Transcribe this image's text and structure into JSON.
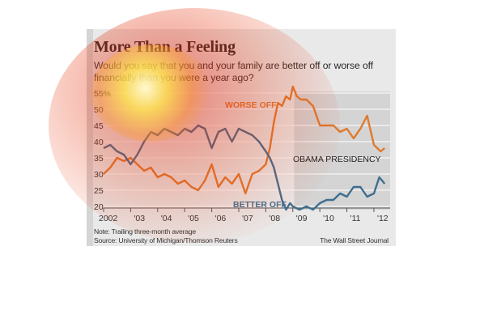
{
  "title": "More Than a Feeling",
  "subtitle": "Would you say that you and your family are better off or worse off financially than you were a year ago?",
  "note": "Note: Trailing three-month average",
  "source": "Source: University of Michigan/Thomson Reuters",
  "credit": "The Wall Street Journal",
  "colors": {
    "worse": "#e07a2c",
    "better": "#3f6e8f",
    "presidency_band": "#d4d4d4",
    "background": "#e9e9e9"
  },
  "chart_data": {
    "type": "line",
    "ylim": [
      20,
      55
    ],
    "xlim": [
      2002,
      2012.6
    ],
    "y_ticks": [
      "55%",
      "50",
      "45",
      "40",
      "35",
      "30",
      "25",
      "20"
    ],
    "y_tick_values": [
      55,
      50,
      45,
      40,
      35,
      30,
      25,
      20
    ],
    "x_ticks": [
      "2002",
      "'03",
      "'04",
      "'05",
      "'06",
      "'07",
      "'08",
      "'09",
      "'10",
      "'11",
      "'12"
    ],
    "x_tick_values": [
      2002,
      2003,
      2004,
      2005,
      2006,
      2007,
      2008,
      2009,
      2010,
      2011,
      2012
    ],
    "band": {
      "label": "OBAMA PRESIDENCY",
      "start": 2009.05,
      "end": 2012.6
    },
    "series": [
      {
        "name": "WORSE OFF",
        "color": "#e07a2c",
        "x": [
          2002.0,
          2002.25,
          2002.5,
          2002.75,
          2003.0,
          2003.25,
          2003.5,
          2003.75,
          2004.0,
          2004.25,
          2004.5,
          2004.75,
          2005.0,
          2005.25,
          2005.5,
          2005.75,
          2006.0,
          2006.25,
          2006.5,
          2006.75,
          2007.0,
          2007.25,
          2007.5,
          2007.75,
          2008.0,
          2008.15,
          2008.3,
          2008.45,
          2008.6,
          2008.75,
          2008.9,
          2009.0,
          2009.15,
          2009.3,
          2009.5,
          2009.75,
          2010.0,
          2010.25,
          2010.5,
          2010.75,
          2011.0,
          2011.25,
          2011.5,
          2011.75,
          2012.0,
          2012.25,
          2012.4
        ],
        "values": [
          30,
          32,
          35,
          34,
          35,
          33,
          31,
          32,
          29,
          30,
          29,
          27,
          28,
          26,
          25,
          28,
          33,
          26,
          29,
          27,
          30,
          24,
          30,
          31,
          33,
          38,
          46,
          52,
          51,
          54,
          53,
          57,
          54,
          53,
          53,
          51,
          45,
          45,
          45,
          43,
          44,
          41,
          44,
          48,
          39,
          37,
          38
        ]
      },
      {
        "name": "BETTER OFF",
        "color": "#3f6e8f",
        "x": [
          2002.0,
          2002.25,
          2002.5,
          2002.75,
          2003.0,
          2003.25,
          2003.5,
          2003.75,
          2004.0,
          2004.25,
          2004.5,
          2004.75,
          2005.0,
          2005.25,
          2005.5,
          2005.75,
          2006.0,
          2006.25,
          2006.5,
          2006.75,
          2007.0,
          2007.25,
          2007.5,
          2007.75,
          2008.0,
          2008.15,
          2008.3,
          2008.45,
          2008.6,
          2008.75,
          2008.9,
          2009.0,
          2009.25,
          2009.5,
          2009.75,
          2010.0,
          2010.25,
          2010.5,
          2010.75,
          2011.0,
          2011.25,
          2011.5,
          2011.75,
          2012.0,
          2012.2,
          2012.4
        ],
        "values": [
          38,
          39,
          37,
          36,
          33,
          36,
          40,
          43,
          42,
          44,
          43,
          42,
          44,
          43,
          45,
          44,
          38,
          43,
          44,
          40,
          44,
          43,
          42,
          40,
          37,
          35,
          32,
          27,
          22,
          19,
          21,
          20,
          19,
          20,
          19,
          21,
          22,
          22,
          24,
          23,
          26,
          26,
          23,
          24,
          29,
          27
        ]
      }
    ],
    "annotations": [
      {
        "text": "WORSE OFF",
        "color": "#e07a2c"
      },
      {
        "text": "BETTER OFF",
        "color": "#3f6e8f"
      }
    ]
  }
}
